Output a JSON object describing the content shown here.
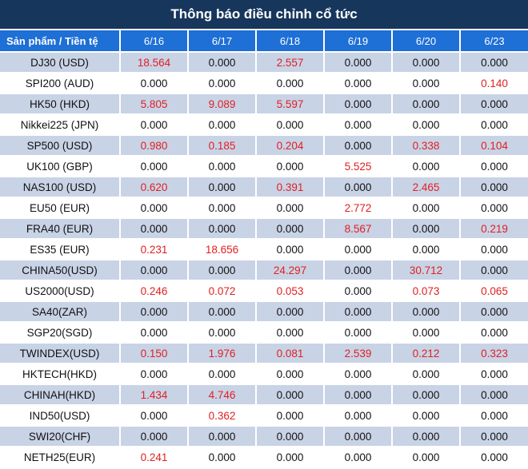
{
  "title": "Thông báo điều chỉnh cổ tức",
  "header": {
    "product_label": "Sản phẩm / Tiền tệ",
    "dates": [
      "6/16",
      "6/17",
      "6/18",
      "6/19",
      "6/20",
      "6/23"
    ]
  },
  "rows": [
    {
      "product": "DJ30 (USD)",
      "values": [
        "18.564",
        "0.000",
        "2.557",
        "0.000",
        "0.000",
        "0.000"
      ]
    },
    {
      "product": "SPI200 (AUD)",
      "values": [
        "0.000",
        "0.000",
        "0.000",
        "0.000",
        "0.000",
        "0.140"
      ]
    },
    {
      "product": "HK50 (HKD)",
      "values": [
        "5.805",
        "9.089",
        "5.597",
        "0.000",
        "0.000",
        "0.000"
      ]
    },
    {
      "product": "Nikkei225 (JPN)",
      "values": [
        "0.000",
        "0.000",
        "0.000",
        "0.000",
        "0.000",
        "0.000"
      ]
    },
    {
      "product": "SP500 (USD)",
      "values": [
        "0.980",
        "0.185",
        "0.204",
        "0.000",
        "0.338",
        "0.104"
      ]
    },
    {
      "product": "UK100 (GBP)",
      "values": [
        "0.000",
        "0.000",
        "0.000",
        "5.525",
        "0.000",
        "0.000"
      ]
    },
    {
      "product": "NAS100 (USD)",
      "values": [
        "0.620",
        "0.000",
        "0.391",
        "0.000",
        "2.465",
        "0.000"
      ]
    },
    {
      "product": "EU50 (EUR)",
      "values": [
        "0.000",
        "0.000",
        "0.000",
        "2.772",
        "0.000",
        "0.000"
      ]
    },
    {
      "product": "FRA40 (EUR)",
      "values": [
        "0.000",
        "0.000",
        "0.000",
        "8.567",
        "0.000",
        "0.219"
      ]
    },
    {
      "product": "ES35 (EUR)",
      "values": [
        "0.231",
        "18.656",
        "0.000",
        "0.000",
        "0.000",
        "0.000"
      ]
    },
    {
      "product": "CHINA50(USD)",
      "values": [
        "0.000",
        "0.000",
        "24.297",
        "0.000",
        "30.712",
        "0.000"
      ]
    },
    {
      "product": "US2000(USD)",
      "values": [
        "0.246",
        "0.072",
        "0.053",
        "0.000",
        "0.073",
        "0.065"
      ]
    },
    {
      "product": "SA40(ZAR)",
      "values": [
        "0.000",
        "0.000",
        "0.000",
        "0.000",
        "0.000",
        "0.000"
      ]
    },
    {
      "product": "SGP20(SGD)",
      "values": [
        "0.000",
        "0.000",
        "0.000",
        "0.000",
        "0.000",
        "0.000"
      ]
    },
    {
      "product": "TWINDEX(USD)",
      "values": [
        "0.150",
        "1.976",
        "0.081",
        "2.539",
        "0.212",
        "0.323"
      ]
    },
    {
      "product": "HKTECH(HKD)",
      "values": [
        "0.000",
        "0.000",
        "0.000",
        "0.000",
        "0.000",
        "0.000"
      ]
    },
    {
      "product": "CHINAH(HKD)",
      "values": [
        "1.434",
        "4.746",
        "0.000",
        "0.000",
        "0.000",
        "0.000"
      ]
    },
    {
      "product": "IND50(USD)",
      "values": [
        "0.000",
        "0.362",
        "0.000",
        "0.000",
        "0.000",
        "0.000"
      ]
    },
    {
      "product": "SWI20(CHF)",
      "values": [
        "0.000",
        "0.000",
        "0.000",
        "0.000",
        "0.000",
        "0.000"
      ]
    },
    {
      "product": "NETH25(EUR)",
      "values": [
        "0.241",
        "0.000",
        "0.000",
        "0.000",
        "0.000",
        "0.000"
      ]
    }
  ],
  "colors": {
    "title_bg": "#17365c",
    "header_bg": "#1e6fd6",
    "shaded_row": "#c9d3e6",
    "positive_value": "#e02020",
    "zero_value": "#111111"
  }
}
